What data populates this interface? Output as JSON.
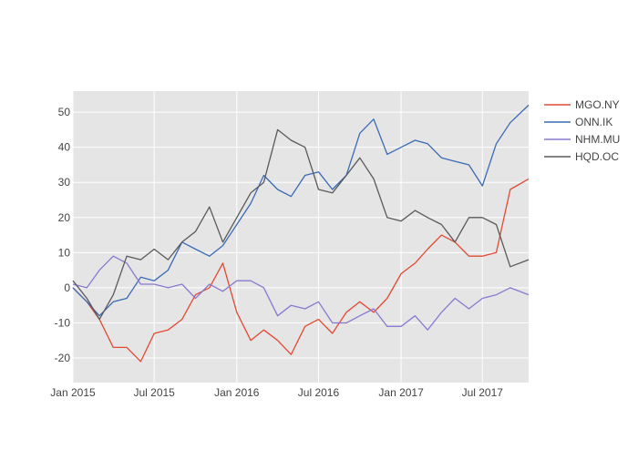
{
  "chart_data": {
    "type": "line",
    "title": "",
    "xlabel": "",
    "ylabel": "",
    "xlim": [
      "2015-01-01",
      "2017-10-01"
    ],
    "ylim": [
      -27,
      56
    ],
    "grid": true,
    "legend_position": "top-right",
    "x_ticks": [
      {
        "date": "2015-01-01",
        "label": "Jan 2015"
      },
      {
        "date": "2015-07-01",
        "label": "Jul 2015"
      },
      {
        "date": "2016-01-01",
        "label": "Jan 2016"
      },
      {
        "date": "2016-07-01",
        "label": "Jul 2016"
      },
      {
        "date": "2017-01-01",
        "label": "Jan 2017"
      },
      {
        "date": "2017-07-01",
        "label": "Jul 2017"
      }
    ],
    "y_ticks": [
      -20,
      -10,
      0,
      10,
      20,
      30,
      40,
      50
    ],
    "x": [
      "2015-01",
      "2015-02",
      "2015-03",
      "2015-04",
      "2015-05",
      "2015-06",
      "2015-07",
      "2015-08",
      "2015-09",
      "2015-10",
      "2015-11",
      "2015-12",
      "2016-01",
      "2016-02",
      "2016-03",
      "2016-04",
      "2016-05",
      "2016-06",
      "2016-07",
      "2016-08",
      "2016-09",
      "2016-10",
      "2016-11",
      "2016-12",
      "2017-01",
      "2017-02",
      "2017-03",
      "2017-04",
      "2017-05",
      "2017-06",
      "2017-07",
      "2017-08",
      "2017-09",
      "2017-10"
    ],
    "series": [
      {
        "name": "MGO.NY",
        "color": "#e24a33",
        "values": [
          0,
          -4,
          -9,
          -17,
          -17,
          -21,
          -13,
          -12,
          -9,
          -2,
          0,
          7,
          -7,
          -15,
          -12,
          -15,
          -19,
          -11,
          -9,
          -13,
          -7,
          -4,
          -7,
          -3,
          4,
          7,
          11,
          15,
          13,
          9,
          9,
          10,
          28,
          31
        ]
      },
      {
        "name": "ONN.IK",
        "color": "#3a6bb4",
        "values": [
          0,
          -4,
          -8,
          -4,
          -3,
          3,
          2,
          5,
          13,
          11,
          9,
          12,
          18,
          24,
          32,
          28,
          26,
          32,
          33,
          28,
          32,
          44,
          48,
          38,
          40,
          42,
          41,
          37,
          36,
          35,
          29,
          41,
          47,
          52
        ]
      },
      {
        "name": "NHM.MU",
        "color": "#8a79d0",
        "values": [
          1,
          0,
          5,
          9,
          7,
          1,
          1,
          0,
          1,
          -3,
          1,
          -1,
          2,
          2,
          0,
          -8,
          -5,
          -6,
          -4,
          -10,
          -10,
          -8,
          -6,
          -11,
          -11,
          -8,
          -12,
          -7,
          -3,
          -6,
          -3,
          -2,
          0,
          -2
        ]
      },
      {
        "name": "HQD.OC",
        "color": "#5a5a5a",
        "values": [
          2,
          -3,
          -9,
          -2,
          9,
          8,
          11,
          8,
          13,
          16,
          23,
          13,
          20,
          27,
          30,
          45,
          42,
          40,
          28,
          27,
          32,
          37,
          31,
          20,
          19,
          22,
          20,
          18,
          13,
          20,
          20,
          18,
          6,
          8
        ]
      }
    ]
  }
}
